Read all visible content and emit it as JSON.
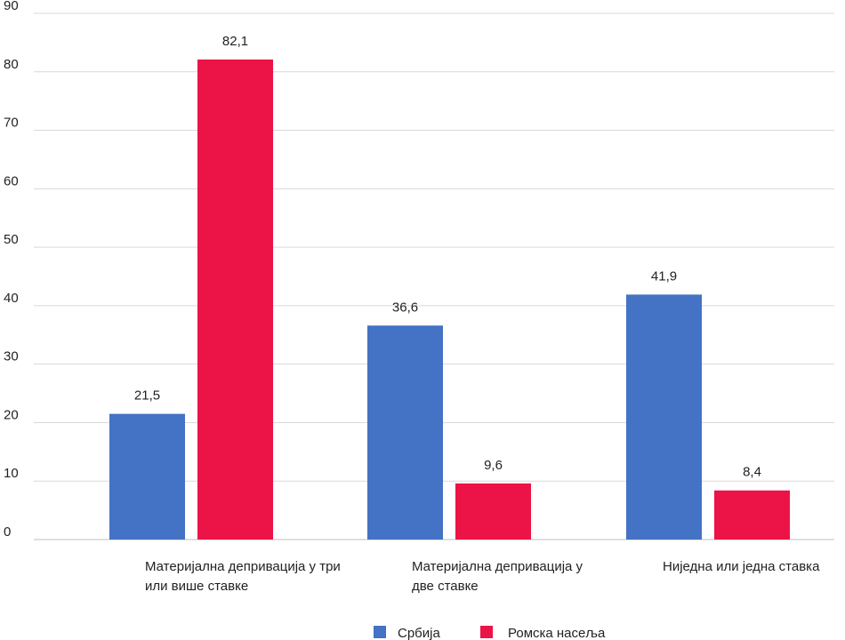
{
  "chart_data": {
    "type": "bar",
    "title": "",
    "xlabel": "",
    "ylabel": "",
    "ylim": [
      0,
      90
    ],
    "yticks": [
      0,
      10,
      20,
      30,
      40,
      50,
      60,
      70,
      80,
      90
    ],
    "grid": true,
    "legend_position": "bottom",
    "categories": [
      [
        "Материјална депривација у три",
        "или више ставке"
      ],
      [
        "Материјална депривација у",
        "две ставке"
      ],
      [
        "Ниједна или једна ставка"
      ]
    ],
    "series": [
      {
        "name": "Србија",
        "color": "#4472c4",
        "values": [
          21.5,
          36.6,
          41.9
        ],
        "labels": [
          "21,5",
          "36,6",
          "41,9"
        ]
      },
      {
        "name": "Ромска насеља",
        "color": "#ec1346",
        "values": [
          82.1,
          9.6,
          8.4
        ],
        "labels": [
          "82,1",
          "9,6",
          "8,4"
        ]
      }
    ]
  }
}
